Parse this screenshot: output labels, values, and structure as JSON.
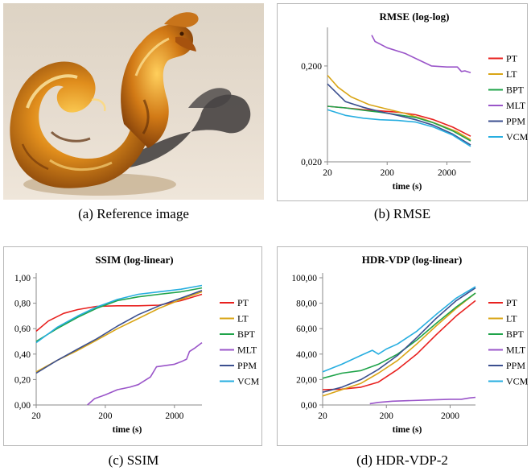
{
  "captions": {
    "a": "(a) Reference image",
    "b": "(b) RMSE",
    "c": "(c) SSIM",
    "d": "(d) HDR-VDP-2"
  },
  "series_colors": {
    "PT": "#e8211f",
    "LT": "#d9a516",
    "BPT": "#1fa34a",
    "MLT": "#9a55c9",
    "PPM": "#3b4f8f",
    "VCM": "#27aee0"
  },
  "chart_data": [
    {
      "type": "line",
      "title": "RMSE (log-log)",
      "xlabel": "time (s)",
      "ylabel": "",
      "xscale": "log",
      "yscale": "log",
      "xlim": [
        20,
        5000
      ],
      "ylim": [
        0.02,
        0.45
      ],
      "xticks": [
        20,
        200,
        2000
      ],
      "xtick_labels": [
        "20",
        "200",
        "2000"
      ],
      "yticks": [
        0.02,
        0.2
      ],
      "ytick_labels": [
        "0,020",
        "0,200"
      ],
      "grid": false,
      "legend": "right",
      "series": [
        {
          "name": "PT",
          "x": [
            20,
            40,
            80,
            150,
            300,
            600,
            1200,
            2500,
            5000
          ],
          "values": [
            0.076,
            0.073,
            0.07,
            0.068,
            0.066,
            0.062,
            0.055,
            0.046,
            0.037
          ]
        },
        {
          "name": "LT",
          "x": [
            20,
            30,
            50,
            100,
            200,
            400,
            800,
            1600,
            3000,
            5000
          ],
          "values": [
            0.16,
            0.12,
            0.095,
            0.079,
            0.071,
            0.064,
            0.056,
            0.048,
            0.041,
            0.034
          ]
        },
        {
          "name": "BPT",
          "x": [
            20,
            40,
            80,
            150,
            300,
            600,
            1200,
            2500,
            5000
          ],
          "values": [
            0.076,
            0.073,
            0.069,
            0.066,
            0.062,
            0.058,
            0.051,
            0.042,
            0.033
          ]
        },
        {
          "name": "MLT",
          "x": [
            110,
            125,
            200,
            400,
            800,
            1100,
            2000,
            3000,
            3500,
            4000,
            5000
          ],
          "values": [
            0.42,
            0.36,
            0.31,
            0.27,
            0.22,
            0.2,
            0.195,
            0.195,
            0.175,
            0.178,
            0.17
          ]
        },
        {
          "name": "PPM",
          "x": [
            20,
            40,
            80,
            150,
            300,
            600,
            1200,
            2500,
            5000
          ],
          "values": [
            0.13,
            0.085,
            0.074,
            0.067,
            0.061,
            0.055,
            0.048,
            0.039,
            0.03
          ]
        },
        {
          "name": "VCM",
          "x": [
            20,
            40,
            80,
            150,
            300,
            600,
            1200,
            2500,
            5000
          ],
          "values": [
            0.07,
            0.061,
            0.057,
            0.055,
            0.054,
            0.052,
            0.046,
            0.038,
            0.029
          ]
        }
      ]
    },
    {
      "type": "line",
      "title": "SSIM (log-linear)",
      "xlabel": "time (s)",
      "ylabel": "",
      "xscale": "log",
      "yscale": "linear",
      "xlim": [
        20,
        5000
      ],
      "ylim": [
        0,
        1
      ],
      "xticks": [
        20,
        200,
        2000
      ],
      "xtick_labels": [
        "20",
        "200",
        "2000"
      ],
      "yticks": [
        0,
        0.2,
        0.4,
        0.6,
        0.8,
        1.0
      ],
      "ytick_labels": [
        "0,00",
        "0,20",
        "0,40",
        "0,60",
        "0,80",
        "1,00"
      ],
      "grid": false,
      "legend": "right",
      "series": [
        {
          "name": "PT",
          "x": [
            20,
            30,
            50,
            80,
            150,
            300,
            600,
            1200,
            2500,
            5000
          ],
          "values": [
            0.58,
            0.66,
            0.72,
            0.75,
            0.775,
            0.78,
            0.78,
            0.785,
            0.82,
            0.87
          ]
        },
        {
          "name": "LT",
          "x": [
            20,
            40,
            80,
            150,
            300,
            600,
            1200,
            2500,
            5000
          ],
          "values": [
            0.26,
            0.35,
            0.43,
            0.51,
            0.6,
            0.68,
            0.76,
            0.83,
            0.89
          ]
        },
        {
          "name": "BPT",
          "x": [
            20,
            40,
            80,
            150,
            300,
            600,
            1200,
            2500,
            5000
          ],
          "values": [
            0.5,
            0.6,
            0.69,
            0.76,
            0.82,
            0.85,
            0.87,
            0.89,
            0.92
          ]
        },
        {
          "name": "MLT",
          "x": [
            110,
            140,
            200,
            300,
            450,
            600,
            900,
            1100,
            2000,
            2500,
            3000,
            3300,
            4000,
            5000
          ],
          "values": [
            0.0,
            0.05,
            0.08,
            0.12,
            0.14,
            0.16,
            0.22,
            0.3,
            0.32,
            0.34,
            0.36,
            0.42,
            0.45,
            0.49
          ]
        },
        {
          "name": "PPM",
          "x": [
            20,
            40,
            80,
            150,
            300,
            600,
            1200,
            2500,
            5000
          ],
          "values": [
            0.25,
            0.35,
            0.44,
            0.52,
            0.62,
            0.71,
            0.78,
            0.84,
            0.9
          ]
        },
        {
          "name": "VCM",
          "x": [
            20,
            40,
            80,
            150,
            300,
            600,
            1200,
            2500,
            5000
          ],
          "values": [
            0.49,
            0.61,
            0.7,
            0.77,
            0.83,
            0.87,
            0.89,
            0.91,
            0.94
          ]
        }
      ]
    },
    {
      "type": "line",
      "title": "HDR-VDP (log-linear)",
      "xlabel": "time (s)",
      "ylabel": "",
      "xscale": "log",
      "yscale": "linear",
      "xlim": [
        20,
        5000
      ],
      "ylim": [
        0,
        100
      ],
      "xticks": [
        20,
        200,
        2000
      ],
      "xtick_labels": [
        "20",
        "200",
        "2000"
      ],
      "yticks": [
        0,
        20,
        40,
        60,
        80,
        100
      ],
      "ytick_labels": [
        "0,00",
        "20,00",
        "40,00",
        "60,00",
        "80,00",
        "100,00"
      ],
      "grid": false,
      "legend": "right",
      "series": [
        {
          "name": "PT",
          "x": [
            20,
            40,
            80,
            150,
            300,
            600,
            1200,
            2500,
            5000
          ],
          "values": [
            12,
            12.5,
            14,
            18,
            28,
            40,
            55,
            70,
            82
          ]
        },
        {
          "name": "LT",
          "x": [
            20,
            40,
            80,
            150,
            300,
            600,
            1200,
            2500,
            5000
          ],
          "values": [
            7,
            12,
            17,
            25,
            35,
            48,
            62,
            76,
            88
          ]
        },
        {
          "name": "BPT",
          "x": [
            20,
            40,
            80,
            150,
            300,
            600,
            1200,
            2500,
            5000
          ],
          "values": [
            21,
            25,
            27,
            32,
            40,
            51,
            64,
            77,
            88
          ]
        },
        {
          "name": "MLT",
          "x": [
            110,
            150,
            250,
            500,
            1000,
            2000,
            3000,
            4000,
            5000
          ],
          "values": [
            1,
            2,
            3,
            3.5,
            4,
            4.5,
            4.5,
            5.5,
            6
          ]
        },
        {
          "name": "PPM",
          "x": [
            20,
            40,
            80,
            150,
            300,
            600,
            1200,
            2500,
            5000
          ],
          "values": [
            10,
            14,
            20,
            28,
            39,
            53,
            68,
            82,
            92
          ]
        },
        {
          "name": "VCM",
          "x": [
            20,
            40,
            80,
            120,
            150,
            200,
            300,
            600,
            1200,
            2500,
            5000
          ],
          "values": [
            26,
            32,
            39,
            43,
            40,
            44,
            48,
            58,
            71,
            84,
            93
          ]
        }
      ]
    }
  ]
}
